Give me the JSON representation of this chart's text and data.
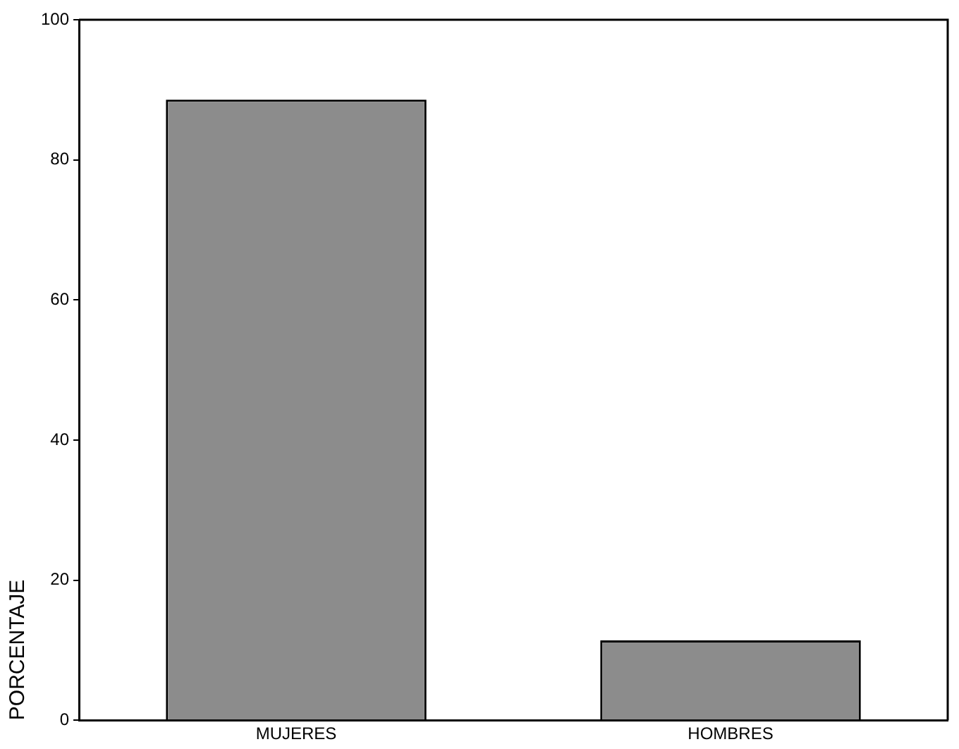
{
  "chart_data": {
    "type": "bar",
    "ylabel": "PORCENTAJE",
    "categories": [
      "MUJERES",
      "HOMBRES"
    ],
    "values": [
      88.6,
      11.4
    ],
    "color": "#8c8c8c",
    "ylim": [
      0,
      100
    ],
    "yticks": [
      0,
      20,
      40,
      60,
      80,
      100
    ],
    "grid": false,
    "legend": false
  }
}
